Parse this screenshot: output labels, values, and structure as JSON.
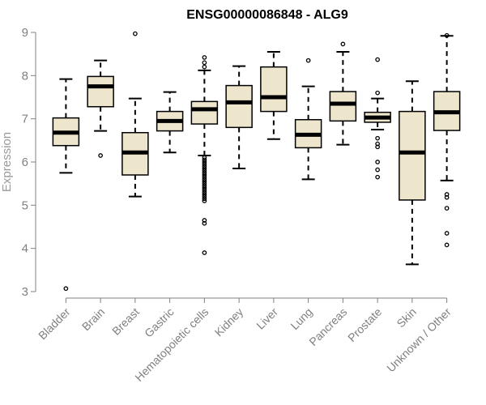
{
  "chart_data": {
    "type": "boxplot",
    "title": "ENSG00000086848 - ALG9",
    "xlabel": "",
    "ylabel": "Expression",
    "ylim": [
      3,
      9
    ],
    "yticks": [
      3,
      4,
      5,
      6,
      7,
      8,
      9
    ],
    "ytick_labels": [
      "3",
      "4",
      "5",
      "6",
      "7",
      "8",
      "9"
    ],
    "box_fill": "#ede5cc",
    "categories": [
      "Bladder",
      "Brain",
      "Breast",
      "Gastric",
      "Hematopoietic cells",
      "Kidney",
      "Liver",
      "Lung",
      "Pancreas",
      "Prostate",
      "Skin",
      "Unknown / Other"
    ],
    "boxes": [
      {
        "name": "Bladder",
        "whisker_low": 5.75,
        "q1": 6.38,
        "median": 6.68,
        "q3": 7.02,
        "whisker_high": 7.92,
        "outliers": [
          3.07
        ]
      },
      {
        "name": "Brain",
        "whisker_low": 6.72,
        "q1": 7.28,
        "median": 7.75,
        "q3": 7.98,
        "whisker_high": 8.35,
        "outliers": [
          6.15
        ]
      },
      {
        "name": "Breast",
        "whisker_low": 5.2,
        "q1": 5.7,
        "median": 6.22,
        "q3": 6.68,
        "whisker_high": 7.47,
        "outliers": [
          8.97
        ]
      },
      {
        "name": "Gastric",
        "whisker_low": 6.22,
        "q1": 6.72,
        "median": 6.95,
        "q3": 7.17,
        "whisker_high": 7.62,
        "outliers": []
      },
      {
        "name": "Hematopoietic cells",
        "whisker_low": 6.15,
        "q1": 6.88,
        "median": 7.22,
        "q3": 7.4,
        "whisker_high": 8.12,
        "outliers": [
          8.42,
          8.3,
          8.2,
          6.1,
          6.05,
          6.0,
          5.95,
          5.9,
          5.85,
          5.8,
          5.75,
          5.7,
          5.65,
          5.6,
          5.55,
          5.5,
          5.45,
          5.4,
          5.35,
          5.3,
          5.25,
          5.2,
          5.15,
          5.1,
          4.65,
          4.58,
          3.9
        ]
      },
      {
        "name": "Kidney",
        "whisker_low": 5.85,
        "q1": 6.8,
        "median": 7.38,
        "q3": 7.77,
        "whisker_high": 8.22,
        "outliers": []
      },
      {
        "name": "Liver",
        "whisker_low": 6.53,
        "q1": 7.17,
        "median": 7.5,
        "q3": 8.2,
        "whisker_high": 8.55,
        "outliers": []
      },
      {
        "name": "Lung",
        "whisker_low": 5.6,
        "q1": 6.33,
        "median": 6.63,
        "q3": 6.98,
        "whisker_high": 7.75,
        "outliers": [
          8.35
        ]
      },
      {
        "name": "Pancreas",
        "whisker_low": 6.4,
        "q1": 6.95,
        "median": 7.35,
        "q3": 7.63,
        "whisker_high": 8.55,
        "outliers": [
          8.73
        ]
      },
      {
        "name": "Prostate",
        "whisker_low": 6.75,
        "q1": 6.92,
        "median": 7.03,
        "q3": 7.15,
        "whisker_high": 7.47,
        "outliers": [
          8.37,
          7.6,
          6.55,
          6.42,
          6.35,
          6.0,
          5.82,
          5.65
        ]
      },
      {
        "name": "Skin",
        "whisker_low": 3.63,
        "q1": 5.12,
        "median": 6.22,
        "q3": 7.17,
        "whisker_high": 7.87,
        "outliers": []
      },
      {
        "name": "Unknown / Other",
        "whisker_low": 5.57,
        "q1": 6.73,
        "median": 7.15,
        "q3": 7.63,
        "whisker_high": 8.92,
        "outliers": [
          8.93,
          5.25,
          5.18,
          4.93,
          4.35,
          4.08
        ]
      }
    ]
  }
}
